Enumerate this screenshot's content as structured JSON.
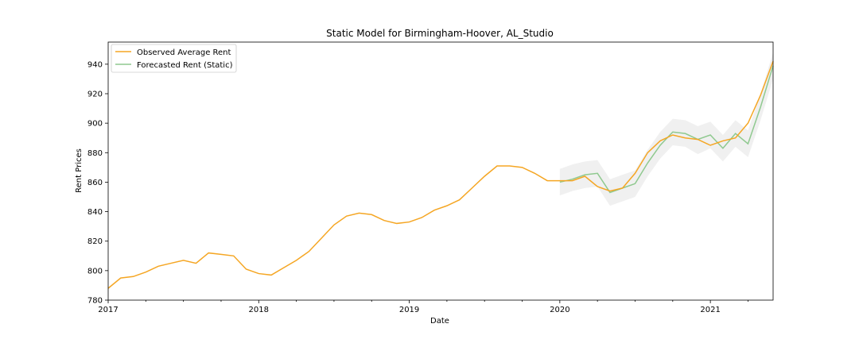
{
  "chart_data": {
    "type": "line",
    "title": "Static Model for Birmingham-Hoover, AL_Studio",
    "xlabel": "Date",
    "ylabel": "Rent Prices",
    "xlim": [
      "2017-01",
      "2021-06"
    ],
    "ylim": [
      780,
      955
    ],
    "x_ticks": [
      {
        "x": "2017-01",
        "label": "2017"
      },
      {
        "x": "2018-01",
        "label": "2018"
      },
      {
        "x": "2019-01",
        "label": "2019"
      },
      {
        "x": "2020-01",
        "label": "2020"
      },
      {
        "x": "2021-01",
        "label": "2021"
      }
    ],
    "y_ticks": [
      780,
      800,
      820,
      840,
      860,
      880,
      900,
      920,
      940
    ],
    "grid": false,
    "legend": {
      "position": "top-left",
      "entries": [
        "Observed Average Rent",
        "Forecasted Rent (Static)"
      ]
    },
    "series": [
      {
        "name": "Observed Average Rent",
        "color": "#f5a623",
        "x": [
          "2017-01",
          "2017-02",
          "2017-03",
          "2017-04",
          "2017-05",
          "2017-06",
          "2017-07",
          "2017-08",
          "2017-09",
          "2017-10",
          "2017-11",
          "2017-12",
          "2018-01",
          "2018-02",
          "2018-03",
          "2018-04",
          "2018-05",
          "2018-06",
          "2018-07",
          "2018-08",
          "2018-09",
          "2018-10",
          "2018-11",
          "2018-12",
          "2019-01",
          "2019-02",
          "2019-03",
          "2019-04",
          "2019-05",
          "2019-06",
          "2019-07",
          "2019-08",
          "2019-09",
          "2019-10",
          "2019-11",
          "2019-12",
          "2020-01",
          "2020-02",
          "2020-03",
          "2020-04",
          "2020-05",
          "2020-06",
          "2020-07",
          "2020-08",
          "2020-09",
          "2020-10",
          "2020-11",
          "2020-12",
          "2021-01",
          "2021-02",
          "2021-03",
          "2021-04",
          "2021-05",
          "2021-06"
        ],
        "y": [
          788,
          795,
          796,
          799,
          803,
          805,
          807,
          805,
          812,
          811,
          810,
          801,
          798,
          797,
          802,
          807,
          813,
          822,
          831,
          837,
          839,
          838,
          834,
          832,
          833,
          836,
          841,
          844,
          848,
          856,
          864,
          871,
          871,
          870,
          866,
          861,
          861,
          861,
          864,
          857,
          854,
          856,
          866,
          880,
          888,
          892,
          890,
          889,
          885,
          888,
          890,
          900,
          919,
          942
        ]
      },
      {
        "name": "Forecasted Rent (Static)",
        "color": "#8fc98f",
        "x": [
          "2020-01",
          "2020-02",
          "2020-03",
          "2020-04",
          "2020-05",
          "2020-06",
          "2020-07",
          "2020-08",
          "2020-09",
          "2020-10",
          "2020-11",
          "2020-12",
          "2021-01",
          "2021-02",
          "2021-03",
          "2021-04",
          "2021-05",
          "2021-06"
        ],
        "y": [
          860,
          862,
          865,
          866,
          853,
          856,
          859,
          873,
          885,
          894,
          893,
          889,
          892,
          883,
          893,
          886,
          911,
          939
        ],
        "lower": [
          851,
          854,
          856,
          857,
          844,
          847,
          850,
          864,
          876,
          885,
          884,
          879,
          883,
          874,
          884,
          877,
          902,
          930
        ],
        "upper": [
          869,
          872,
          874,
          875,
          862,
          865,
          868,
          882,
          894,
          903,
          902,
          898,
          901,
          892,
          902,
          895,
          920,
          948
        ]
      }
    ]
  }
}
